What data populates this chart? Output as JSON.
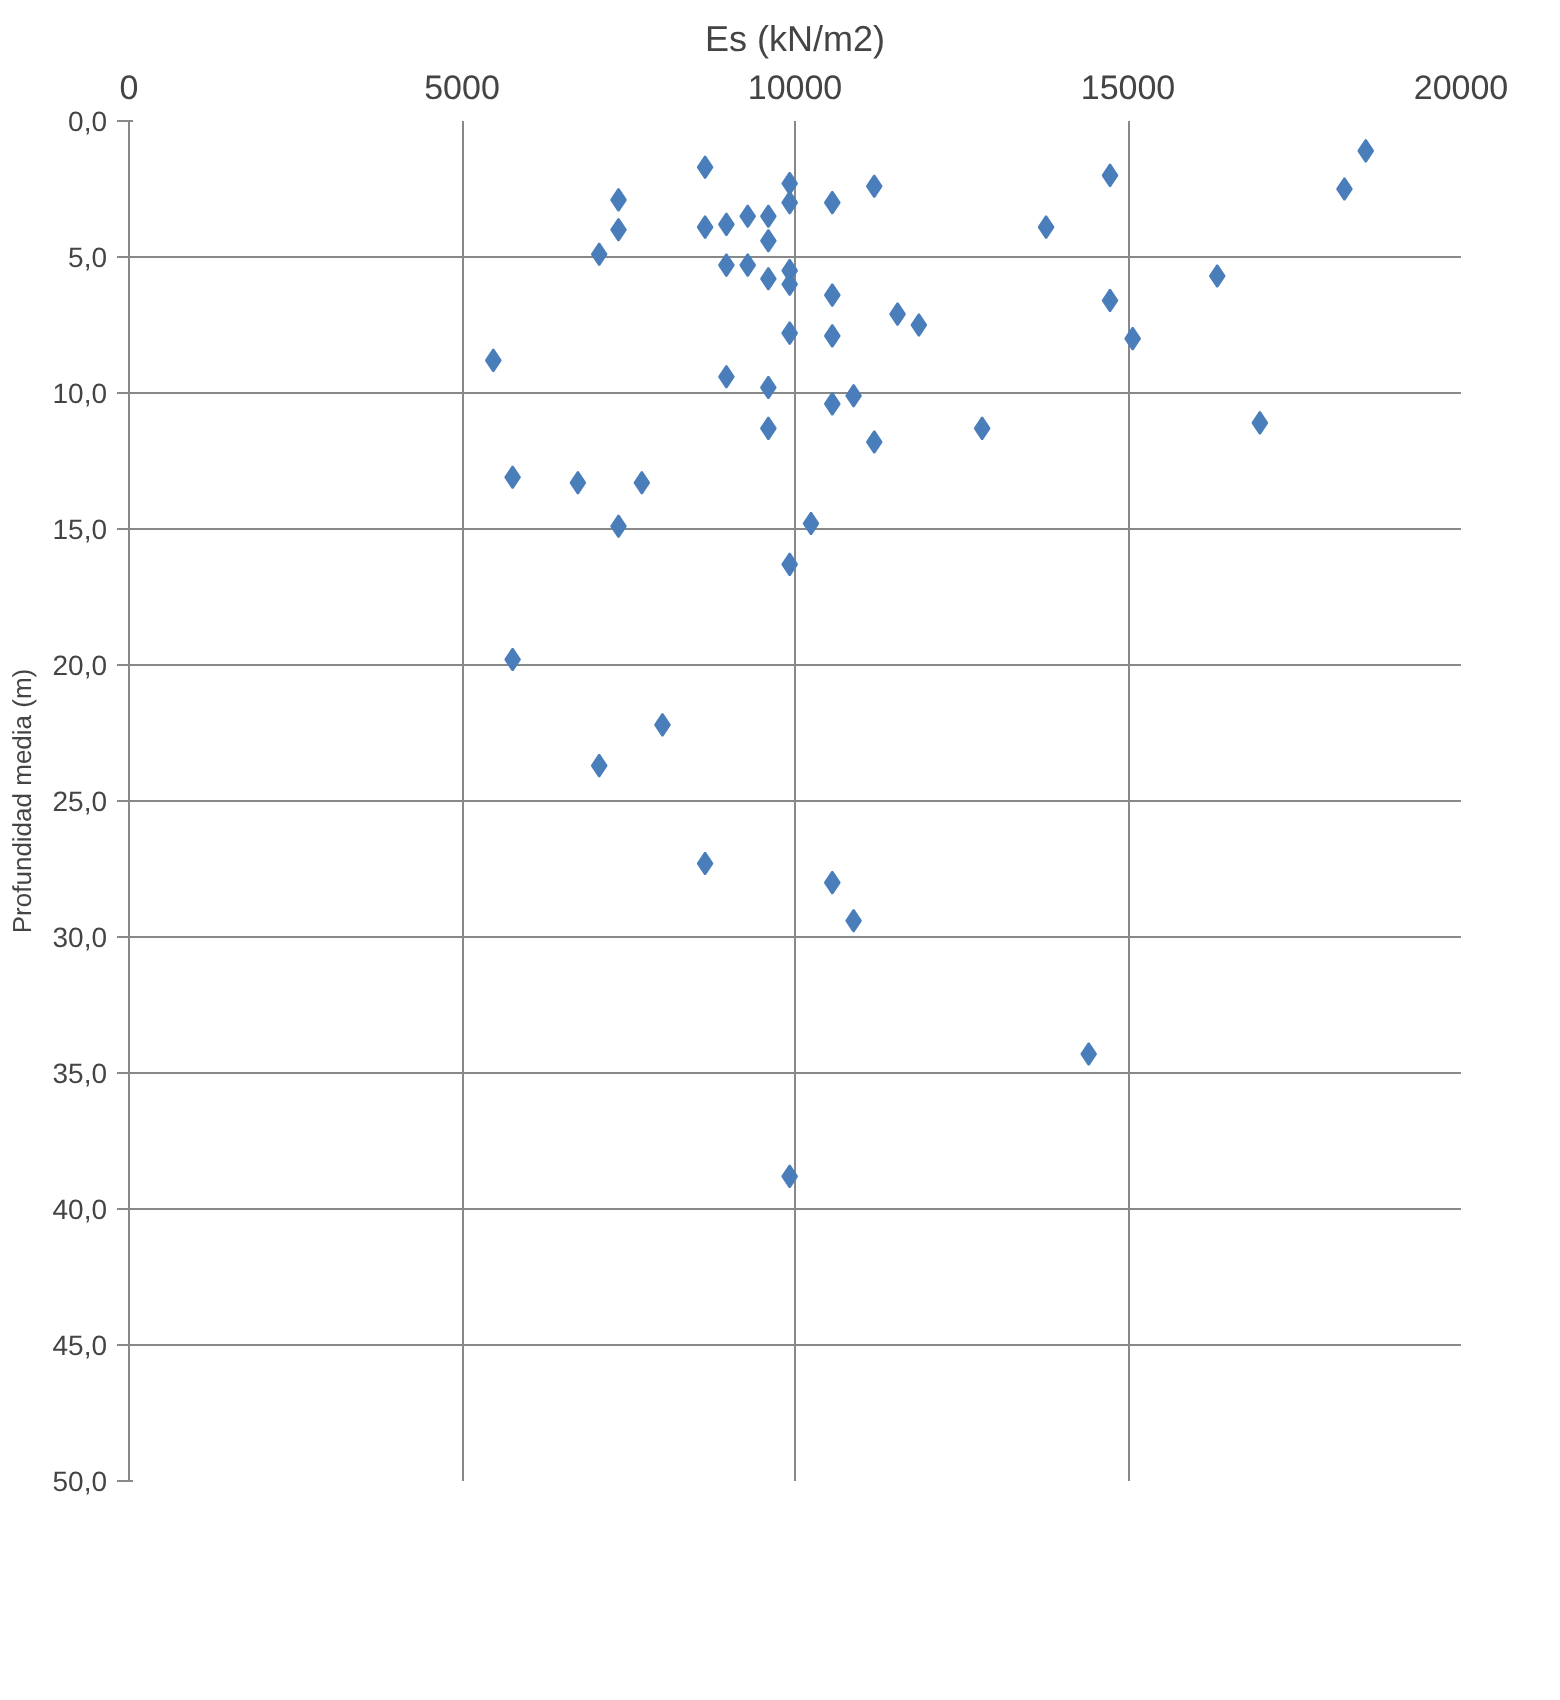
{
  "chart_data": {
    "type": "scatter",
    "xlabel": "Es (kN/m2)",
    "ylabel": "Profundidad media (m)",
    "marker": "diamond",
    "grid": true,
    "xlim": [
      0,
      20000
    ],
    "xticks": [
      0,
      5000,
      10000,
      15000,
      20000
    ],
    "ylim": [
      50,
      0
    ],
    "yticks": [
      {
        "value": 0,
        "label": "0,0"
      },
      {
        "value": 5,
        "label": "5,0"
      },
      {
        "value": 10,
        "label": "10,0"
      },
      {
        "value": 15,
        "label": "15,0"
      },
      {
        "value": 20,
        "label": "20,0"
      },
      {
        "value": 25,
        "label": "25,0"
      },
      {
        "value": 30,
        "label": "30,0"
      },
      {
        "value": 35,
        "label": "35,0"
      },
      {
        "value": 40,
        "label": "40,0"
      },
      {
        "value": 45,
        "label": "45,0"
      },
      {
        "value": 50,
        "label": "50,0"
      }
    ],
    "series": [
      {
        "color": "#4a7ebb",
        "x": [
          5470,
          5760,
          5760,
          6740,
          7060,
          7060,
          7350,
          7350,
          7350,
          7700,
          8010,
          8650,
          8650,
          8650,
          8970,
          8970,
          8970,
          9290,
          9290,
          9600,
          9600,
          9600,
          9600,
          9600,
          9920,
          9920,
          9920,
          9920,
          9920,
          9920,
          9920,
          10240,
          10560,
          10560,
          10560,
          10560,
          10560,
          10880,
          10880,
          11190,
          11190,
          11540,
          11860,
          12810,
          13770,
          14410,
          14730,
          14730,
          15070,
          16340,
          16980,
          18250,
          18570
        ],
        "values": [
          8.8,
          13.1,
          19.8,
          13.3,
          4.9,
          23.7,
          2.9,
          4.0,
          14.9,
          13.3,
          22.2,
          1.7,
          3.9,
          27.3,
          3.8,
          5.3,
          9.4,
          3.5,
          5.3,
          3.5,
          4.4,
          5.8,
          9.8,
          11.3,
          2.3,
          3.0,
          5.5,
          6.0,
          7.8,
          16.3,
          38.8,
          14.8,
          3.0,
          6.4,
          7.9,
          10.4,
          28.0,
          10.1,
          29.4,
          2.4,
          11.8,
          7.1,
          7.5,
          11.3,
          3.9,
          34.3,
          2.0,
          6.6,
          8.0,
          5.7,
          11.1,
          2.5,
          1.1
        ]
      }
    ]
  }
}
